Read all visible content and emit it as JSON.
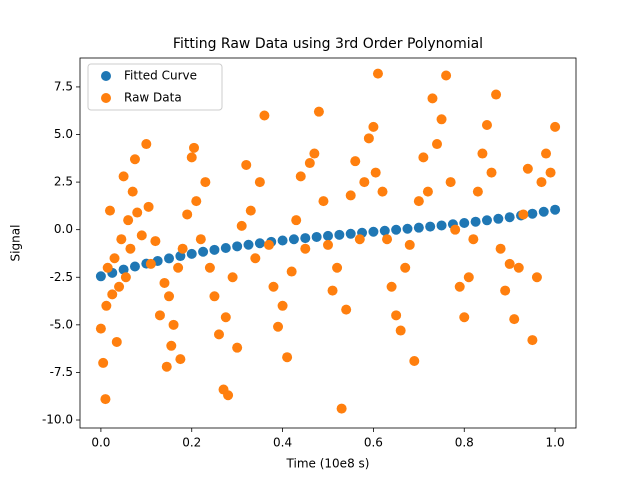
{
  "chart_data": {
    "type": "scatter",
    "title": "Fitting Raw Data using 3rd Order Polynomial",
    "x_label": "Time (10e8 s)",
    "y_label": "Signal",
    "xlim": [
      -0.046,
      1.046
    ],
    "ylim": [
      -10.42,
      9.02
    ],
    "xticks": [
      {
        "value": 0,
        "label": "0.0"
      },
      0.2,
      0.4,
      0.6,
      0.8,
      {
        "value": 1,
        "label": "1.0"
      }
    ],
    "yticks": [
      {
        "value": -10,
        "label": "-10.0"
      },
      -7.5,
      {
        "value": -5,
        "label": "-5.0"
      },
      -2.5,
      {
        "value": 0,
        "label": "0.0"
      },
      2.5,
      {
        "value": 5,
        "label": "5.0"
      },
      7.5
    ],
    "grid": false,
    "legend": "upper left",
    "series": [
      {
        "name": "Fitted Curve",
        "color": "#1f77b4",
        "x": [
          0,
          0.025,
          0.05,
          0.075,
          0.1,
          0.125,
          0.15,
          0.175,
          0.2,
          0.225,
          0.25,
          0.275,
          0.3,
          0.325,
          0.35,
          0.375,
          0.4,
          0.425,
          0.45,
          0.475,
          0.5,
          0.525,
          0.55,
          0.575,
          0.6,
          0.625,
          0.65,
          0.675,
          0.7,
          0.725,
          0.75,
          0.775,
          0.8,
          0.825,
          0.85,
          0.875,
          0.9,
          0.925,
          0.95,
          0.975,
          1.0
        ],
        "values": [
          -2.45,
          -2.268,
          -2.097,
          -1.936,
          -1.785,
          -1.643,
          -1.511,
          -1.386,
          -1.27,
          -1.161,
          -1.059,
          -0.964,
          -0.875,
          -0.791,
          -0.713,
          -0.639,
          -0.57,
          -0.504,
          -0.442,
          -0.382,
          -0.325,
          -0.27,
          -0.216,
          -0.163,
          -0.11,
          -0.057,
          -0.004,
          0.05,
          0.105,
          0.162,
          0.222,
          0.284,
          0.35,
          0.419,
          0.493,
          0.572,
          0.655,
          0.744,
          0.839,
          0.941,
          1.05
        ]
      },
      {
        "name": "Raw Data",
        "color": "#ff7f0e",
        "x": [
          0.0,
          0.005,
          0.01,
          0.012,
          0.015,
          0.02,
          0.025,
          0.03,
          0.035,
          0.04,
          0.045,
          0.05,
          0.055,
          0.06,
          0.065,
          0.07,
          0.075,
          0.08,
          0.09,
          0.1,
          0.105,
          0.11,
          0.12,
          0.13,
          0.14,
          0.145,
          0.15,
          0.155,
          0.16,
          0.17,
          0.175,
          0.18,
          0.19,
          0.2,
          0.205,
          0.21,
          0.22,
          0.23,
          0.24,
          0.25,
          0.26,
          0.27,
          0.275,
          0.28,
          0.29,
          0.3,
          0.31,
          0.32,
          0.33,
          0.34,
          0.35,
          0.36,
          0.37,
          0.38,
          0.39,
          0.4,
          0.41,
          0.42,
          0.43,
          0.44,
          0.45,
          0.46,
          0.47,
          0.48,
          0.49,
          0.5,
          0.51,
          0.52,
          0.53,
          0.54,
          0.55,
          0.56,
          0.57,
          0.58,
          0.59,
          0.6,
          0.605,
          0.61,
          0.62,
          0.63,
          0.64,
          0.65,
          0.66,
          0.67,
          0.68,
          0.69,
          0.7,
          0.71,
          0.72,
          0.73,
          0.74,
          0.75,
          0.76,
          0.77,
          0.78,
          0.79,
          0.8,
          0.81,
          0.82,
          0.83,
          0.84,
          0.85,
          0.86,
          0.87,
          0.88,
          0.89,
          0.9,
          0.91,
          0.92,
          0.93,
          0.94,
          0.95,
          0.96,
          0.97,
          0.98,
          0.99,
          1.0
        ],
        "values": [
          -5.2,
          -7.0,
          -8.9,
          -4.0,
          -2.0,
          1.0,
          -3.4,
          -1.5,
          -5.9,
          -3.0,
          -0.5,
          2.8,
          -2.5,
          0.5,
          -1.0,
          2.0,
          3.7,
          0.9,
          -0.3,
          4.5,
          1.2,
          -1.8,
          -0.6,
          -4.5,
          -2.8,
          -7.2,
          -3.5,
          -6.1,
          -5.0,
          -2.0,
          -6.8,
          -1.0,
          0.8,
          3.8,
          4.3,
          1.5,
          -0.5,
          2.5,
          -2.0,
          -3.5,
          -5.5,
          -8.4,
          -4.6,
          -8.7,
          -2.5,
          -6.2,
          0.2,
          3.4,
          1.0,
          -1.5,
          2.5,
          6.0,
          -0.8,
          -3.0,
          -5.1,
          -4.0,
          -6.7,
          -2.2,
          0.5,
          2.8,
          -1.0,
          3.5,
          4.0,
          6.2,
          1.5,
          -0.8,
          -3.2,
          -2.0,
          -9.4,
          -4.2,
          1.8,
          3.6,
          -0.5,
          2.5,
          4.8,
          5.4,
          3.0,
          8.2,
          2.0,
          -0.5,
          -3.0,
          -4.5,
          -5.3,
          -2.0,
          -0.8,
          -6.9,
          1.5,
          3.8,
          2.0,
          6.9,
          4.5,
          5.8,
          8.1,
          2.5,
          0.0,
          -3.0,
          -4.6,
          -2.5,
          -0.5,
          2.0,
          4.0,
          5.5,
          3.0,
          7.1,
          -1.0,
          -3.2,
          -1.8,
          -4.7,
          -2.0,
          0.8,
          3.2,
          -5.8,
          -2.5,
          2.5,
          4.0,
          3.0,
          5.4
        ]
      }
    ]
  }
}
